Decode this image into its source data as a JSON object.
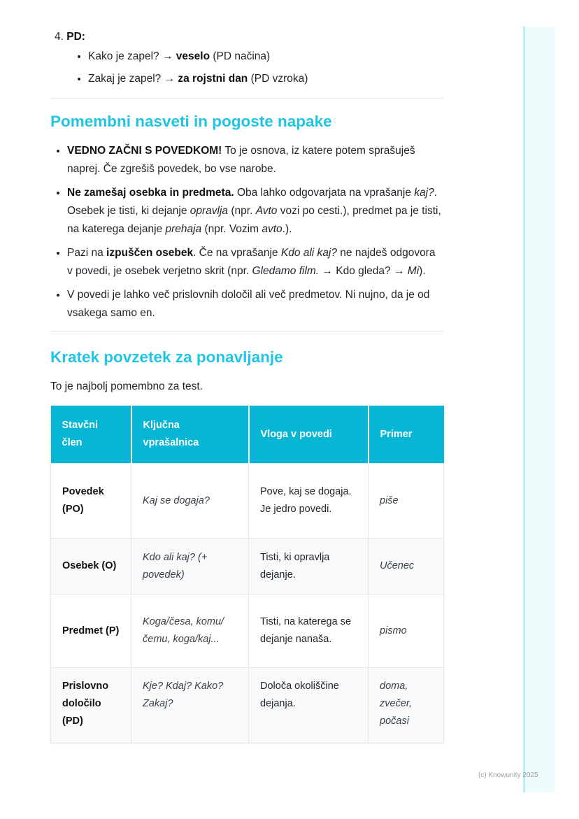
{
  "section_top": {
    "number": "4.",
    "label": "PD:",
    "bullets": [
      [
        {
          "t": "Kako je zapel? → "
        },
        {
          "t": "veselo",
          "s": "b"
        },
        {
          "t": " (PD načina)"
        }
      ],
      [
        {
          "t": "Zakaj je zapel? → "
        },
        {
          "t": "za rojstni dan",
          "s": "b"
        },
        {
          "t": " (PD vzroka)"
        }
      ]
    ]
  },
  "tips": {
    "heading": "Pomembni nasveti in pogoste napake",
    "items": [
      [
        {
          "t": "VEDNO ZAČNI S POVEDKOM!",
          "s": "b"
        },
        {
          "t": " To je osnova, iz katere potem sprašuješ naprej. Če zgrešiš povedek, bo vse narobe."
        }
      ],
      [
        {
          "t": "Ne zamešaj osebka in predmeta.",
          "s": "b"
        },
        {
          "t": " Oba lahko odgovarjata na vprašanje "
        },
        {
          "t": "kaj?",
          "s": "i"
        },
        {
          "t": ". Osebek je tisti, ki dejanje "
        },
        {
          "t": "opravlja",
          "s": "i"
        },
        {
          "t": " (npr. "
        },
        {
          "t": "Avto",
          "s": "i"
        },
        {
          "t": " vozi po cesti.), predmet pa je tisti, na katerega dejanje "
        },
        {
          "t": "prehaja",
          "s": "i"
        },
        {
          "t": " (npr. Vozim "
        },
        {
          "t": "avto",
          "s": "i"
        },
        {
          "t": ".)."
        }
      ],
      [
        {
          "t": "Pazi na "
        },
        {
          "t": "izpuščen osebek",
          "s": "b"
        },
        {
          "t": ". Če na vprašanje "
        },
        {
          "t": "Kdo ali kaj?",
          "s": "i"
        },
        {
          "t": " ne najdeš odgovora v povedi, je osebek verjetno skrit (npr. "
        },
        {
          "t": "Gledamo film.",
          "s": "i"
        },
        {
          "t": " → Kdo gleda? → "
        },
        {
          "t": "Mi",
          "s": "i"
        },
        {
          "t": ")."
        }
      ],
      [
        {
          "t": "V povedi je lahko več prislovnih določil ali več predmetov. Ni nujno, da je od vsakega samo en."
        }
      ]
    ]
  },
  "summary": {
    "heading": "Kratek povzetek za ponavljanje",
    "intro": "To je najbolj pomembno za test.",
    "table": {
      "headers": [
        "Stavčni člen",
        "Ključna vprašalnica",
        "Vloga v povedi",
        "Primer"
      ],
      "rows": [
        [
          "Povedek (PO)",
          "Kaj se dogaja?",
          "Pove, kaj se dogaja. Je jedro povedi.",
          "piše"
        ],
        [
          "Osebek (O)",
          "Kdo ali kaj? (+ povedek)",
          "Tisti, ki opravlja dejanje.",
          "Učenec"
        ],
        [
          "Predmet (P)",
          "Koga/česa, komu/čemu, koga/kaj...",
          "Tisti, na katerega se dejanje nanaša.",
          "pismo"
        ],
        [
          "Prislovno določilo (PD)",
          "Kje? Kdaj? Kako? Zakaj?",
          "Določa okoliščine dejanja.",
          "doma, zvečer, počasi"
        ]
      ]
    }
  },
  "footer": "(c) Knowunity 2025",
  "colors": {
    "accent": "#22c4e6",
    "table_header": "#06b6d4",
    "strip": "#effcfe"
  }
}
